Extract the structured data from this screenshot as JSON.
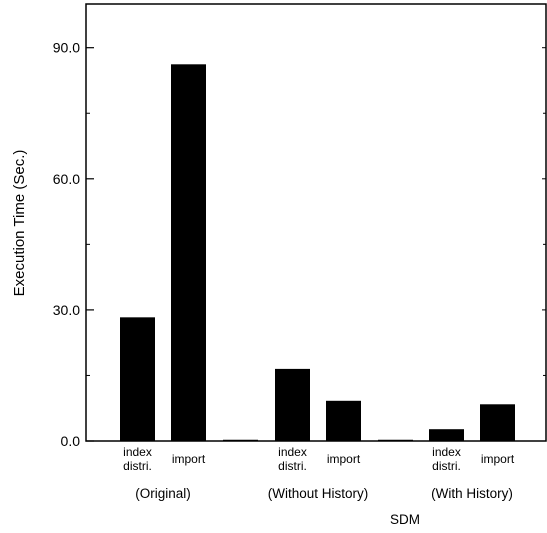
{
  "chart_data": {
    "type": "bar",
    "title": "",
    "ylabel": "Execution Time (Sec.)",
    "xlabel": "SDM",
    "ylim": [
      0,
      100
    ],
    "yticks": [
      {
        "value": 0,
        "label": "0.0"
      },
      {
        "value": 30,
        "label": "30.0"
      },
      {
        "value": 60,
        "label": "60.0"
      },
      {
        "value": 90,
        "label": "90.0"
      }
    ],
    "groups": [
      {
        "label": "(Original)"
      },
      {
        "label": "(Without History)"
      },
      {
        "label": "(With History)"
      }
    ],
    "bars": [
      {
        "group": 0,
        "label_lines": [
          "index",
          "distri."
        ],
        "value": 28.3
      },
      {
        "group": 0,
        "label_lines": [
          "import"
        ],
        "value": 86.2
      },
      {
        "group": 1,
        "label_lines": [
          "index",
          "distri."
        ],
        "value": 16.5
      },
      {
        "group": 1,
        "label_lines": [
          "import"
        ],
        "value": 9.2
      },
      {
        "group": 2,
        "label_lines": [
          "index",
          "distri."
        ],
        "value": 2.7
      },
      {
        "group": 2,
        "label_lines": [
          "import"
        ],
        "value": 8.4
      }
    ],
    "bar_color": "#000000",
    "grid": false,
    "legend": "none"
  }
}
